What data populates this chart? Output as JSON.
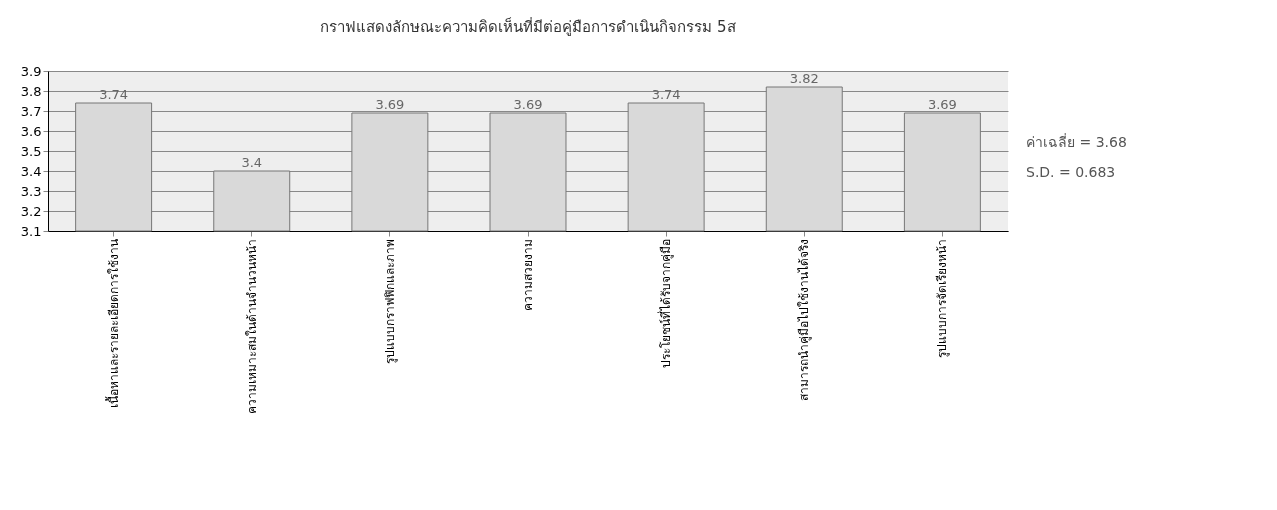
{
  "chart_data": {
    "type": "bar",
    "title": "กราฟแสดงลักษณะความคิดเห็นที่มีต่อคู่มือการดำเนินกิจกรรม 5ส",
    "categories": [
      "เนื้อหาและรายละเอียดการใช้งาน",
      "ความเหมาะสมในด้านจำนวนหน้า",
      "รูปแบบกราฟฟิกและภาพ",
      "ความสวยงาม",
      "ประโยชน์ที่ได้รับจากคู่มือ",
      "สามารถนำคู่มือไปใช้งานได้จริง",
      "รูปแบบการจัดเรียงหน้า"
    ],
    "values": [
      3.74,
      3.4,
      3.69,
      3.69,
      3.74,
      3.82,
      3.69
    ],
    "color": "#d9d9d9",
    "ylim": [
      3.1,
      3.9
    ],
    "yticks": [
      3.1,
      3.2,
      3.3,
      3.4,
      3.5,
      3.6,
      3.7,
      3.8,
      3.9
    ],
    "grid": "y",
    "data_labels": true,
    "annotations": [
      "ค่าเฉลี่ย = 3.68",
      "S.D. = 0.683"
    ]
  }
}
